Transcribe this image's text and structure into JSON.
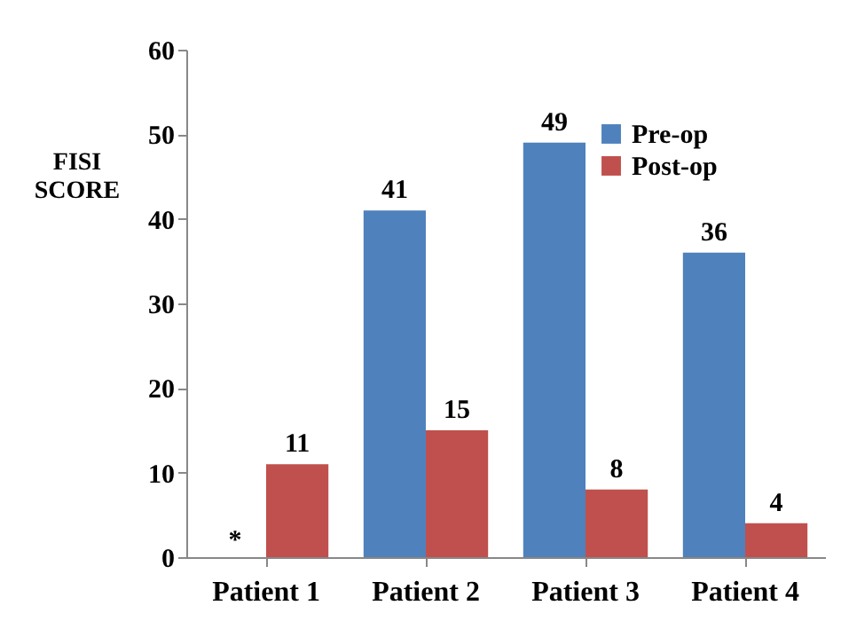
{
  "chart_data": {
    "type": "bar",
    "ylabel": "FISI SCORE",
    "categories": [
      "Patient 1",
      "Patient 2",
      "Patient 3",
      "Patient 4"
    ],
    "series": [
      {
        "name": "Pre-op",
        "color": "#4f81bd",
        "values": [
          null,
          41,
          49,
          36
        ]
      },
      {
        "name": "Post-op",
        "color": "#c0504d",
        "values": [
          11,
          15,
          8,
          4
        ]
      }
    ],
    "ylim": [
      0,
      60
    ],
    "yticks": [
      0,
      10,
      20,
      30,
      40,
      50,
      60
    ],
    "grid": false,
    "legend": "top right",
    "data_labels": true,
    "annotations": [
      {
        "text": "*",
        "x": "Patient 1",
        "y": 0
      }
    ]
  }
}
